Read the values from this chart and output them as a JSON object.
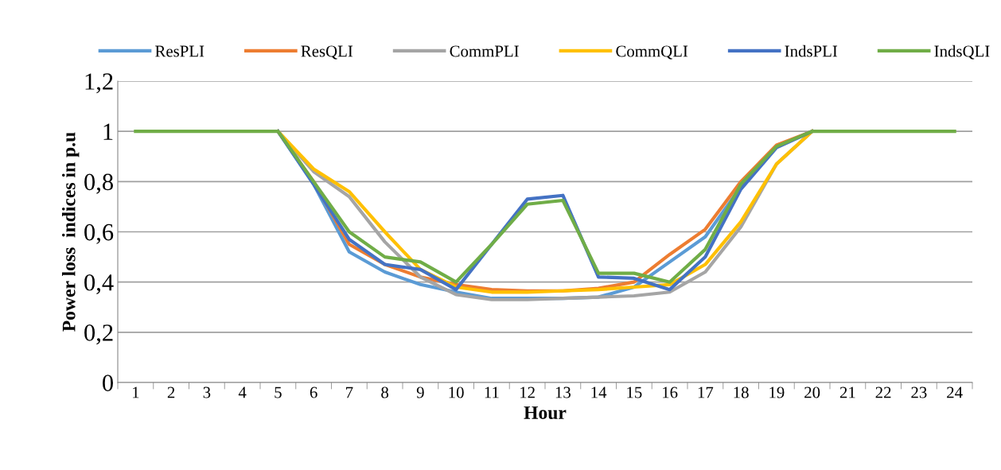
{
  "chart_data": {
    "type": "line",
    "xlabel": "Hour",
    "ylabel": "Power loss  indices in p.u",
    "categories": [
      "1",
      "2",
      "3",
      "4",
      "5",
      "6",
      "7",
      "8",
      "9",
      "10",
      "11",
      "12",
      "13",
      "14",
      "15",
      "16",
      "17",
      "18",
      "19",
      "20",
      "21",
      "22",
      "23",
      "24"
    ],
    "series": [
      {
        "name": "ResPLI",
        "color": "#5b9bd5",
        "values": [
          null,
          null,
          null,
          null,
          1,
          0.79,
          0.52,
          0.44,
          0.39,
          0.36,
          0.335,
          0.335,
          0.335,
          0.34,
          0.38,
          0.48,
          0.58,
          0.78,
          0.94,
          1,
          null,
          null,
          null,
          null
        ]
      },
      {
        "name": "ResQLI",
        "color": "#ed7d31",
        "values": [
          null,
          null,
          null,
          null,
          1,
          0.8,
          0.55,
          0.47,
          0.42,
          0.39,
          0.37,
          0.365,
          0.365,
          0.375,
          0.4,
          0.51,
          0.61,
          0.8,
          0.945,
          1,
          null,
          null,
          null,
          null
        ]
      },
      {
        "name": "CommPLI",
        "color": "#a5a5a5",
        "values": [
          null,
          null,
          null,
          null,
          1,
          0.84,
          0.74,
          0.56,
          0.42,
          0.35,
          0.33,
          0.33,
          0.335,
          0.34,
          0.345,
          0.36,
          0.44,
          0.62,
          0.87,
          1,
          null,
          null,
          null,
          null
        ]
      },
      {
        "name": "CommQLI",
        "color": "#ffc000",
        "values": [
          null,
          null,
          null,
          null,
          1,
          0.85,
          0.76,
          0.6,
          0.45,
          0.38,
          0.36,
          0.36,
          0.365,
          0.37,
          0.38,
          0.39,
          0.47,
          0.64,
          0.87,
          1,
          null,
          null,
          null,
          null
        ]
      },
      {
        "name": "IndsPLI",
        "color": "#4472c4",
        "values": [
          null,
          null,
          null,
          null,
          1,
          0.79,
          0.57,
          0.47,
          0.45,
          0.37,
          0.55,
          0.73,
          0.745,
          0.42,
          0.415,
          0.37,
          0.5,
          0.77,
          0.935,
          1,
          null,
          null,
          null,
          null
        ]
      },
      {
        "name": "IndsQLI",
        "color": "#70ad47",
        "values": [
          1,
          1,
          1,
          1,
          1,
          0.8,
          0.6,
          0.5,
          0.48,
          0.4,
          0.55,
          0.71,
          0.725,
          0.435,
          0.435,
          0.4,
          0.53,
          0.79,
          0.94,
          1,
          1,
          1,
          1,
          1
        ]
      }
    ],
    "ylim": [
      0,
      1.2
    ],
    "yticks": [
      0,
      {
        "value": 0.2,
        "label": "0,2"
      },
      {
        "value": 0.4,
        "label": "0,4"
      },
      {
        "value": 0.6,
        "label": "0,6"
      },
      {
        "value": 0.8,
        "label": "0,8"
      },
      1,
      {
        "value": 1.2,
        "label": "1,2"
      }
    ],
    "grid": "y",
    "legend": "top",
    "marker": "none",
    "line_style": "solid"
  }
}
